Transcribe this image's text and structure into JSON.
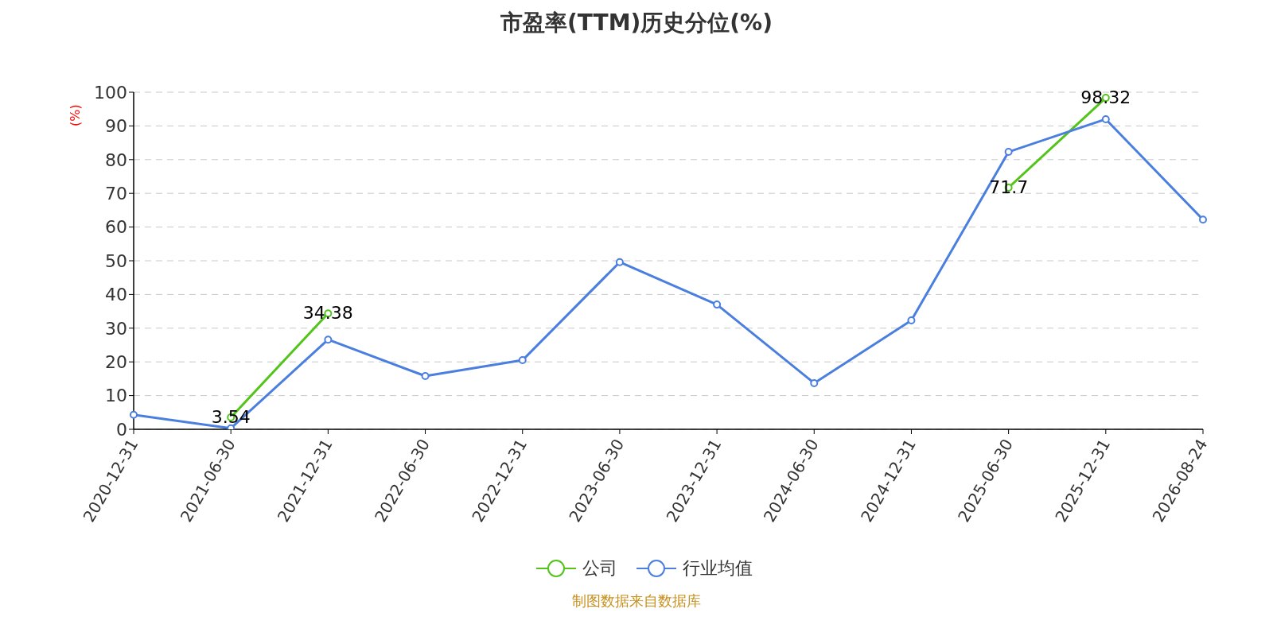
{
  "chart_data": {
    "type": "line",
    "title": "市盈率(TTM)历史分位(%)",
    "ylabel": "(%)",
    "categories": [
      "2020-12-31",
      "2021-06-30",
      "2021-12-31",
      "2022-06-30",
      "2022-12-31",
      "2023-06-30",
      "2023-12-31",
      "2024-06-30",
      "2024-12-31",
      "2025-06-30",
      "2025-12-31",
      "2026-08-24"
    ],
    "series": [
      {
        "name": "公司",
        "color": "#52c41a",
        "values": [
          null,
          3.54,
          34.38,
          null,
          null,
          null,
          null,
          null,
          null,
          71.7,
          98.32,
          null
        ],
        "value_labels": [
          null,
          "3.54",
          "34.38",
          null,
          null,
          null,
          null,
          null,
          null,
          "71.7",
          "98.32",
          null
        ]
      },
      {
        "name": "行业均值",
        "color": "#4a7fe0",
        "values": [
          4.3,
          0.3,
          26.6,
          15.8,
          20.5,
          49.6,
          37.0,
          13.7,
          32.3,
          82.3,
          92.0,
          62.2
        ]
      }
    ],
    "ylim": [
      0,
      100
    ],
    "yticks": [
      0,
      10,
      20,
      30,
      40,
      50,
      60,
      70,
      80,
      90,
      100
    ],
    "grid": "y",
    "legend": "bottom",
    "marker": "circle",
    "line_style": "solid",
    "annotations": [
      "制图数据来自数据库"
    ]
  }
}
